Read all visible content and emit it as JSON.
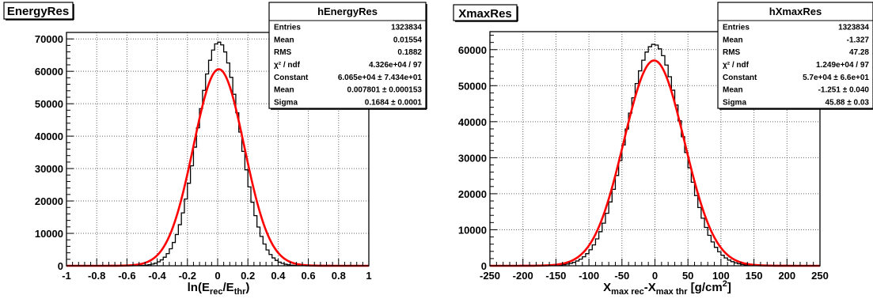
{
  "chart_data": [
    {
      "type": "histogram",
      "title": "EnergyRes",
      "xlabel_main": "ln(E",
      "xlabel_sub1": "rec",
      "xlabel_mid": "/E",
      "xlabel_sub2": "thr",
      "xlabel_end": ")",
      "xlim": [
        -1,
        1
      ],
      "ylim": [
        0,
        72000
      ],
      "xticks": [
        -1,
        -0.8,
        -0.6,
        -0.4,
        -0.2,
        0,
        0.2,
        0.4,
        0.6,
        0.8,
        1
      ],
      "xtick_labels": [
        "-1",
        "-0.8",
        "-0.6",
        "-0.4",
        "-0.2",
        "0",
        "0.2",
        "0.4",
        "0.6",
        "0.8",
        "1"
      ],
      "yticks": [
        0,
        10000,
        20000,
        30000,
        40000,
        50000,
        60000,
        70000
      ],
      "ytick_labels": [
        "0",
        "10000",
        "20000",
        "30000",
        "40000",
        "50000",
        "60000",
        "70000"
      ],
      "grid": true,
      "bin_width": 0.02,
      "hist_peak": 69000,
      "hist_mean": 0.0078,
      "hist_sigma": 0.14,
      "hist_tail": 0.05,
      "hist_tail_amp": 2000,
      "fit": {
        "constant": 60650,
        "mean": 0.007801,
        "sigma": 0.1684,
        "color": "#ff0000"
      },
      "stats": {
        "title": "hEnergyRes",
        "rows": [
          {
            "label": "Entries",
            "value": "1323834"
          },
          {
            "label": "Mean",
            "value": "0.01554"
          },
          {
            "label": "RMS",
            "value": "0.1882"
          },
          {
            "label": "χ² / ndf",
            "value": "4.326e+04 / 97"
          },
          {
            "label": "Constant",
            "value": "6.065e+04 ± 7.434e+01"
          },
          {
            "label": "Mean",
            "value": "0.007801 ± 0.000153"
          },
          {
            "label": "Sigma",
            "value": "0.1684 ± 0.0001"
          }
        ]
      }
    },
    {
      "type": "histogram",
      "title": "XmaxRes",
      "xlabel_main": "X",
      "xlabel_sub1": "max rec",
      "xlabel_mid": "-X",
      "xlabel_sub2": "max thr",
      "xlabel_end": " [g/cm",
      "xlabel_sup": "2",
      "xlabel_close": "]",
      "xlim": [
        -250,
        250
      ],
      "ylim": [
        0,
        65000
      ],
      "xticks": [
        -250,
        -200,
        -150,
        -100,
        -50,
        0,
        50,
        100,
        150,
        200,
        250
      ],
      "xtick_labels": [
        "-250",
        "-200",
        "-150",
        "-100",
        "-50",
        "0",
        "50",
        "100",
        "150",
        "200",
        "250"
      ],
      "yticks": [
        0,
        10000,
        20000,
        30000,
        40000,
        50000,
        60000
      ],
      "ytick_labels": [
        "0",
        "10000",
        "20000",
        "30000",
        "40000",
        "50000",
        "60000"
      ],
      "grid": true,
      "bin_width": 5,
      "hist_peak": 61500,
      "hist_mean": -1.2,
      "hist_sigma": 42,
      "hist_tail": 20,
      "hist_tail_amp": 900,
      "fit": {
        "constant": 57000,
        "mean": -1.251,
        "sigma": 45.88,
        "color": "#ff0000"
      },
      "stats": {
        "title": "hXmaxRes",
        "rows": [
          {
            "label": "Entries",
            "value": "1323834"
          },
          {
            "label": "Mean",
            "value": "-1.327"
          },
          {
            "label": "RMS",
            "value": "47.28"
          },
          {
            "label": "χ² / ndf",
            "value": "1.249e+04 / 97"
          },
          {
            "label": "Constant",
            "value": "5.7e+04 ± 6.6e+01"
          },
          {
            "label": "Mean",
            "value": "-1.251 ± 0.040"
          },
          {
            "label": "Sigma",
            "value": "45.88 ± 0.03"
          }
        ]
      }
    }
  ]
}
